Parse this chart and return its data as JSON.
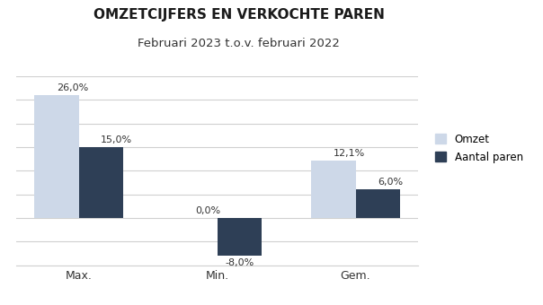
{
  "title": "OMZETCIJFERS EN VERKOCHTE PAREN",
  "subtitle": "Februari 2023 t.o.v. februari 2022",
  "categories": [
    "Max.",
    "Min.",
    "Gem."
  ],
  "omzet": [
    26.0,
    0.0,
    12.1
  ],
  "aantal_paren": [
    15.0,
    -8.0,
    6.0
  ],
  "omzet_color": "#cdd8e8",
  "aantal_paren_color": "#2e3f56",
  "ylim": [
    -10,
    30
  ],
  "yticks": [
    -10,
    -5,
    0,
    5,
    10,
    15,
    20,
    25,
    30
  ],
  "bar_width": 0.32,
  "legend_labels": [
    "Omzet",
    "Aantal paren"
  ],
  "title_fontsize": 11,
  "subtitle_fontsize": 9.5,
  "label_fontsize": 8,
  "tick_fontsize": 9,
  "background_color": "#ffffff"
}
